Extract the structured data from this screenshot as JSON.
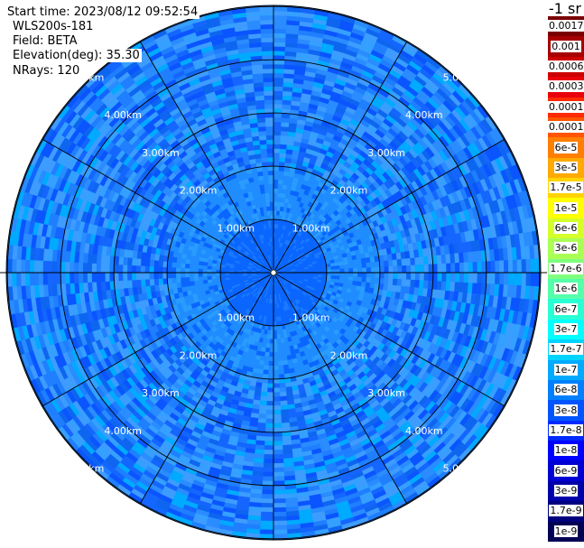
{
  "header": {
    "start_time": "Start time: 2023/08/12 09:52:54",
    "instrument": "WLS200s-181",
    "field": "Field: BETA",
    "elevation": "Elevation(deg): 35.30",
    "nrays": "NRays: 120"
  },
  "map": {
    "range_rings_km": [
      1,
      2,
      3,
      4,
      5
    ],
    "ring_labels": [
      "1.00km",
      "2.00km",
      "3.00km",
      "4.00km",
      "5.00km"
    ],
    "spoke_count": 12,
    "ray_count": 120,
    "max_range_km": 5.0,
    "dominant_value": "1e-7"
  },
  "colorbar": {
    "unit_label": "-1 sr",
    "segments": [
      {
        "label": "0.0017",
        "color": "#7a0000"
      },
      {
        "label": "0.001",
        "color": "#a60000"
      },
      {
        "label": "0.0006",
        "color": "#cc0000"
      },
      {
        "label": "0.0003",
        "color": "#e8000a"
      },
      {
        "label": "0.00017",
        "color": "#ff2a00"
      },
      {
        "label": "0.0001",
        "color": "#ff5500"
      },
      {
        "label": "6e-5",
        "color": "#ff7f00"
      },
      {
        "label": "3e-5",
        "color": "#ffaa00"
      },
      {
        "label": "1.7e-5",
        "color": "#ffd400"
      },
      {
        "label": "1e-5",
        "color": "#ffff00"
      },
      {
        "label": "6e-6",
        "color": "#d4ff2a"
      },
      {
        "label": "3e-6",
        "color": "#aaff55"
      },
      {
        "label": "1.7e-6",
        "color": "#7fff7f"
      },
      {
        "label": "1e-6",
        "color": "#55ffaa"
      },
      {
        "label": "6e-7",
        "color": "#2affd4"
      },
      {
        "label": "3e-7",
        "color": "#00ffff"
      },
      {
        "label": "1.7e-7",
        "color": "#00d4ff"
      },
      {
        "label": "1e-7",
        "color": "#00aaff"
      },
      {
        "label": "6e-8",
        "color": "#0080ff"
      },
      {
        "label": "3e-8",
        "color": "#0055ff"
      },
      {
        "label": "1.7e-8",
        "color": "#002aff"
      },
      {
        "label": "1e-8",
        "color": "#0000ff"
      },
      {
        "label": "6e-9",
        "color": "#0000d4"
      },
      {
        "label": "3e-9",
        "color": "#0000aa"
      },
      {
        "label": "1.7e-9",
        "color": "#00007f"
      },
      {
        "label": "1e-9",
        "color": "#000055"
      }
    ]
  }
}
